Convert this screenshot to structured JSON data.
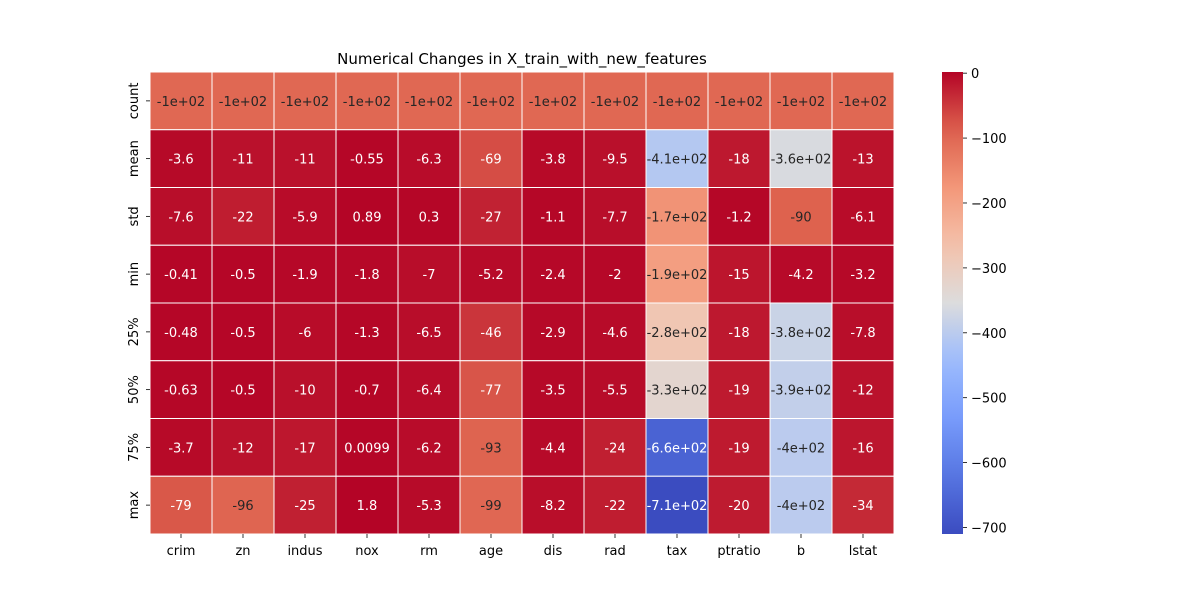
{
  "chart_data": {
    "type": "heatmap",
    "title": "Numerical Changes in X_train_with_new_features",
    "xlabel": "",
    "ylabel": "",
    "columns": [
      "crim",
      "zn",
      "indus",
      "nox",
      "rm",
      "age",
      "dis",
      "rad",
      "tax",
      "ptratio",
      "b",
      "lstat"
    ],
    "rows": [
      "count",
      "mean",
      "std",
      "min",
      "25%",
      "50%",
      "75%",
      "max"
    ],
    "values": [
      [
        -100,
        -100,
        -100,
        -100,
        -100,
        -100,
        -100,
        -100,
        -100,
        -100,
        -100,
        -100
      ],
      [
        -3.6,
        -11,
        -11,
        -0.55,
        -6.3,
        -69,
        -3.8,
        -9.5,
        -410,
        -18,
        -360,
        -13
      ],
      [
        -7.6,
        -22,
        -5.9,
        0.89,
        0.3,
        -27,
        -1.1,
        -7.7,
        -170,
        -1.2,
        -90,
        -6.1
      ],
      [
        -0.41,
        -0.5,
        -1.9,
        -1.8,
        -7,
        -5.2,
        -2.4,
        -2,
        -190,
        -15,
        -4.2,
        -3.2
      ],
      [
        -0.48,
        -0.5,
        -6,
        -1.3,
        -6.5,
        -46,
        -2.9,
        -4.6,
        -280,
        -18,
        -380,
        -7.8
      ],
      [
        -0.63,
        -0.5,
        -10,
        -0.7,
        -6.4,
        -77,
        -3.5,
        -5.5,
        -330,
        -19,
        -390,
        -12
      ],
      [
        -3.7,
        -12,
        -17,
        0.0099,
        -6.2,
        -93,
        -4.4,
        -24,
        -660,
        -19,
        -400,
        -16
      ],
      [
        -79,
        -96,
        -25,
        1.8,
        -5.3,
        -99,
        -8.2,
        -22,
        -710,
        -20,
        -400,
        -34
      ]
    ],
    "annotations": [
      [
        "-1e+02",
        "-1e+02",
        "-1e+02",
        "-1e+02",
        "-1e+02",
        "-1e+02",
        "-1e+02",
        "-1e+02",
        "-1e+02",
        "-1e+02",
        "-1e+02",
        "-1e+02"
      ],
      [
        "-3.6",
        "-11",
        "-11",
        "-0.55",
        "-6.3",
        "-69",
        "-3.8",
        "-9.5",
        "-4.1e+02",
        "-18",
        "-3.6e+02",
        "-13"
      ],
      [
        "-7.6",
        "-22",
        "-5.9",
        "0.89",
        "0.3",
        "-27",
        "-1.1",
        "-7.7",
        "-1.7e+02",
        "-1.2",
        "-90",
        "-6.1"
      ],
      [
        "-0.41",
        "-0.5",
        "-1.9",
        "-1.8",
        "-7",
        "-5.2",
        "-2.4",
        "-2",
        "-1.9e+02",
        "-15",
        "-4.2",
        "-3.2"
      ],
      [
        "-0.48",
        "-0.5",
        "-6",
        "-1.3",
        "-6.5",
        "-46",
        "-2.9",
        "-4.6",
        "-2.8e+02",
        "-18",
        "-3.8e+02",
        "-7.8"
      ],
      [
        "-0.63",
        "-0.5",
        "-10",
        "-0.7",
        "-6.4",
        "-77",
        "-3.5",
        "-5.5",
        "-3.3e+02",
        "-19",
        "-3.9e+02",
        "-12"
      ],
      [
        "-3.7",
        "-12",
        "-17",
        "0.0099",
        "-6.2",
        "-93",
        "-4.4",
        "-24",
        "-6.6e+02",
        "-19",
        "-4e+02",
        "-16"
      ],
      [
        "-79",
        "-96",
        "-25",
        "1.8",
        "-5.3",
        "-99",
        "-8.2",
        "-22",
        "-7.1e+02",
        "-20",
        "-4e+02",
        "-34"
      ]
    ],
    "colormap": "coolwarm",
    "vmin": -710,
    "vmax": 1.8,
    "colorbar": {
      "ticks": [
        0,
        -100,
        -200,
        -300,
        -400,
        -500,
        -600,
        -700
      ],
      "tick_labels": [
        "0",
        "−100",
        "−200",
        "−300",
        "−400",
        "−500",
        "−600",
        "−700"
      ]
    },
    "grid": true
  }
}
